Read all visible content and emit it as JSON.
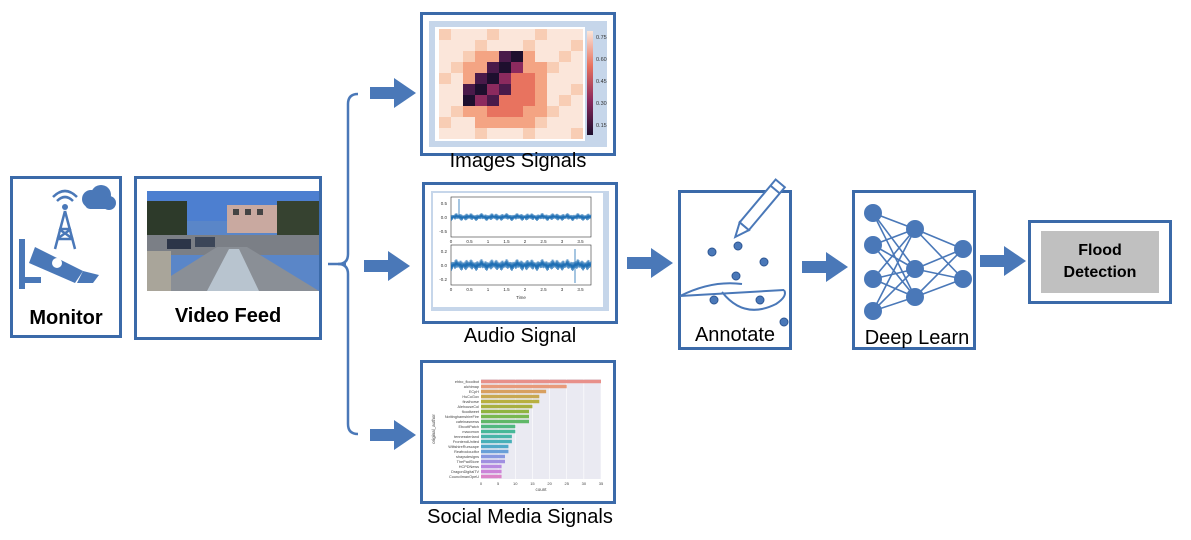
{
  "nodes": {
    "monitor": {
      "label": "Monitor"
    },
    "video_feed": {
      "label": "Video Feed"
    },
    "images_signals": {
      "label": "Images Signals"
    },
    "audio_signal": {
      "label": "Audio Signal"
    },
    "social_media_signals": {
      "label": "Social Media Signals"
    },
    "annotate": {
      "label": "Annotate"
    },
    "deep_learn": {
      "label": "Deep Learn"
    },
    "flood_detection": {
      "label_line1": "Flood",
      "label_line2": "Detection"
    }
  },
  "heatmap": {
    "colorbar_ticks": [
      "0.75",
      "0.60",
      "0.45",
      "0.30",
      "0.15"
    ]
  },
  "audio_plot": {
    "yticks_top": [
      "0.5",
      "0.0",
      "-0.5"
    ],
    "yticks_bottom": [
      "0.2",
      "0.0",
      "-0.2"
    ],
    "xticks": [
      "0",
      "0.5",
      "1",
      "1.5",
      "2",
      "2.5",
      "3",
      "3.5"
    ],
    "xlabel": "Time"
  },
  "bar_plot": {
    "categories": [
      "ehbo_floodbot",
      "alchimap",
      "ECpH",
      "HuCoGov",
      "finalhorse",
      "AlehouseCol",
      "floodtweet",
      "NottinghamshireFire",
      "cafeinasnews",
      "EbcottPatch",
      "macomon",
      "tennessterland",
      "FrontendUnited",
      "WiltshireRurscape",
      "Reafrocloudfor",
      "shaysdesigns",
      "ThePadStore",
      "HCPDNews",
      "DragonDigitalTV",
      "CouncilmanOpeU"
    ],
    "values": [
      35,
      25,
      19,
      17,
      17,
      15,
      14,
      14,
      14,
      10,
      10,
      9,
      9,
      8,
      8,
      7,
      7,
      6,
      6,
      6
    ],
    "ylabel": "original_author",
    "xlabel": "count",
    "xticks": [
      "0",
      "5",
      "10",
      "15",
      "20",
      "25",
      "30",
      "35"
    ]
  },
  "colors": {
    "border": "#3b6aa9",
    "accent": "#4a78b8",
    "flood_bg": "#c0c0c0"
  }
}
